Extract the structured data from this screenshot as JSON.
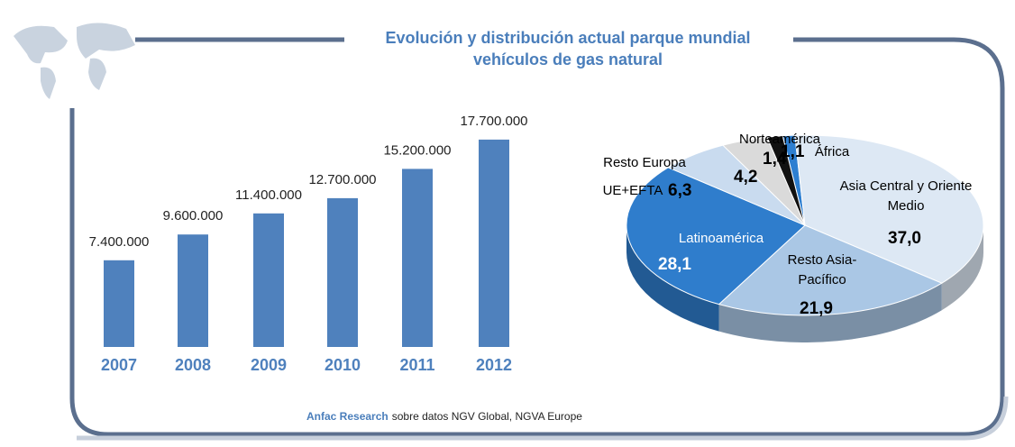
{
  "title": "Evolución y distribución actual parque mundial vehículos de gas natural",
  "logo": "Anfac Research",
  "source": "sobre datos NGV Global, NGVA Europe",
  "chart_data": [
    {
      "type": "bar",
      "categories": [
        "2007",
        "2008",
        "2009",
        "2010",
        "2011",
        "2012"
      ],
      "values": [
        7400000,
        9600000,
        11400000,
        12700000,
        15200000,
        17700000
      ],
      "value_labels": [
        "7.400.000",
        "9.600.000",
        "11.400.000",
        "12.700.000",
        "15.200.000",
        "17.700.000"
      ],
      "color": "#4f81bd"
    },
    {
      "type": "pie",
      "categories": [
        "África",
        "Asia Central y Oriente Medio",
        "Resto Asia-Pacífico",
        "Latinoamérica",
        "UE+EFTA",
        "Resto Europa",
        "Norteamérica"
      ],
      "values": [
        1.1,
        37.0,
        21.9,
        28.1,
        6.3,
        4.2,
        1.4
      ],
      "value_labels": [
        "1,1",
        "37,0",
        "21,9",
        "28,1",
        "6,3",
        "4,2",
        "1,4"
      ],
      "colors": [
        "#2e7fd1",
        "#dde8f4",
        "#aac7e5",
        "#2f7dcc",
        "#c9dbef",
        "#dadada",
        "#111111"
      ]
    }
  ]
}
